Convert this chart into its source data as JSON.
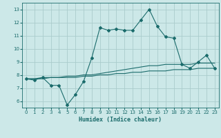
{
  "xlabel": "Humidex (Indice chaleur)",
  "xlim": [
    -0.5,
    23.5
  ],
  "ylim": [
    5.5,
    13.5
  ],
  "yticks": [
    6,
    7,
    8,
    9,
    10,
    11,
    12,
    13
  ],
  "xticks": [
    0,
    1,
    2,
    3,
    4,
    5,
    6,
    7,
    8,
    9,
    10,
    11,
    12,
    13,
    14,
    15,
    16,
    17,
    18,
    19,
    20,
    21,
    22,
    23
  ],
  "bg_color": "#cce8e8",
  "grid_color": "#aacccc",
  "line_color": "#1a6b6b",
  "line1_x": [
    0,
    1,
    2,
    3,
    4,
    5,
    6,
    7,
    8,
    9,
    10,
    11,
    12,
    13,
    14,
    15,
    16,
    17,
    18,
    19,
    20,
    21,
    22,
    23
  ],
  "line1_y": [
    7.7,
    7.6,
    7.8,
    7.2,
    7.2,
    5.7,
    6.5,
    7.5,
    9.3,
    11.6,
    11.4,
    11.5,
    11.4,
    11.4,
    12.2,
    13.0,
    11.7,
    10.9,
    10.8,
    8.8,
    8.5,
    9.0,
    9.5,
    8.5
  ],
  "line2_x": [
    0,
    1,
    2,
    3,
    4,
    5,
    6,
    7,
    8,
    9,
    10,
    11,
    12,
    13,
    14,
    15,
    16,
    17,
    18,
    19,
    20,
    21,
    22,
    23
  ],
  "line2_y": [
    7.7,
    7.7,
    7.8,
    7.8,
    7.8,
    7.9,
    7.9,
    8.0,
    8.0,
    8.1,
    8.2,
    8.3,
    8.4,
    8.5,
    8.6,
    8.7,
    8.7,
    8.8,
    8.8,
    8.8,
    8.8,
    8.9,
    8.9,
    8.9
  ],
  "line3_x": [
    0,
    1,
    2,
    3,
    4,
    5,
    6,
    7,
    8,
    9,
    10,
    11,
    12,
    13,
    14,
    15,
    16,
    17,
    18,
    19,
    20,
    21,
    22,
    23
  ],
  "line3_y": [
    7.7,
    7.7,
    7.7,
    7.8,
    7.8,
    7.8,
    7.8,
    7.9,
    7.9,
    8.0,
    8.0,
    8.1,
    8.1,
    8.2,
    8.2,
    8.3,
    8.3,
    8.3,
    8.4,
    8.4,
    8.4,
    8.5,
    8.5,
    8.5
  ]
}
